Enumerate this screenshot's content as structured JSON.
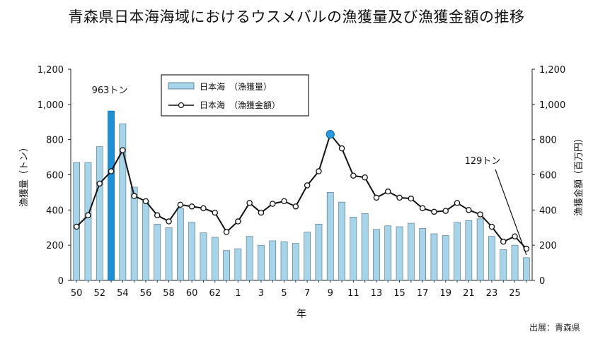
{
  "title": "青森県日本海海域におけるウスメバルの漁獲量及び漁獲金額の推移",
  "source": "出展：青森県",
  "chart_data": {
    "type": "bar",
    "x": [
      50,
      51,
      52,
      53,
      54,
      55,
      56,
      57,
      58,
      59,
      60,
      61,
      62,
      63,
      1,
      2,
      3,
      4,
      5,
      6,
      7,
      8,
      9,
      10,
      11,
      12,
      13,
      14,
      15,
      16,
      17,
      18,
      19,
      20,
      21,
      22,
      23,
      24,
      25,
      26
    ],
    "xticklabels": [
      "50",
      "52",
      "54",
      "56",
      "58",
      "60",
      "62",
      "1",
      "3",
      "5",
      "7",
      "9",
      "11",
      "13",
      "15",
      "17",
      "19",
      "21",
      "23",
      "25"
    ],
    "xlabel": "年",
    "ylabel_left": "漁獲量（トン）",
    "ylabel_right": "漁獲金額（百万円）",
    "ylim_left": [
      0,
      1200
    ],
    "ylim_right": [
      0,
      1200
    ],
    "yticks_left": [
      "0",
      "200",
      "400",
      "600",
      "800",
      "1,000",
      "1,200"
    ],
    "yticks_right": [
      "0",
      "200",
      "400",
      "600",
      "800",
      "1,000",
      "1,200"
    ],
    "legend_position": "top-center",
    "highlight_colors": {
      "bar_normal": "#a8d4ea",
      "bar_highlight": "#1e90d6",
      "point_highlight": "#2b9be0"
    },
    "series": [
      {
        "name": "日本海　（漁獲量）",
        "kind": "bar",
        "axis": "left",
        "values": [
          670,
          670,
          760,
          963,
          890,
          530,
          450,
          320,
          300,
          410,
          330,
          270,
          245,
          170,
          180,
          250,
          200,
          225,
          220,
          210,
          275,
          320,
          500,
          445,
          360,
          380,
          290,
          310,
          305,
          325,
          295,
          265,
          255,
          330,
          340,
          350,
          250,
          175,
          200,
          129
        ]
      },
      {
        "name": "日本海　（漁獲金額）",
        "kind": "line",
        "axis": "right",
        "values": [
          305,
          370,
          550,
          620,
          740,
          480,
          450,
          370,
          335,
          430,
          420,
          410,
          385,
          275,
          335,
          440,
          385,
          435,
          450,
          420,
          540,
          620,
          830,
          750,
          595,
          585,
          470,
          505,
          470,
          465,
          410,
          390,
          395,
          440,
          400,
          375,
          305,
          220,
          250,
          180
        ]
      }
    ],
    "annotations": [
      {
        "text": "963トン",
        "x_index": 3
      },
      {
        "text": "129トン",
        "x_index": 39
      }
    ],
    "highlighted_bar_index": 3,
    "highlighted_point_index": 22
  }
}
